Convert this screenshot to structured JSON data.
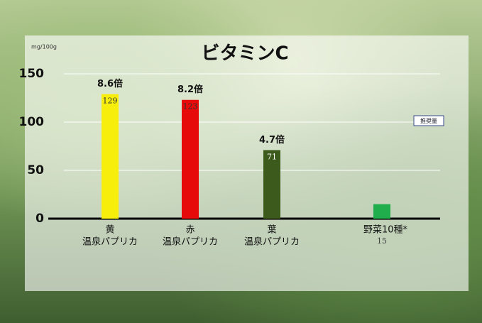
{
  "chart_data": {
    "type": "bar",
    "title": "ビタミンC",
    "y_label": "mg/100g",
    "categories": [
      [
        "黄",
        "温泉パプリカ"
      ],
      [
        "赤",
        "温泉パプリカ"
      ],
      [
        "葉",
        "温泉パプリカ"
      ],
      [
        "野菜10種*"
      ]
    ],
    "values": [
      129,
      123,
      71,
      15
    ],
    "colors": [
      "#f7ee0c",
      "#e60a0a",
      "#3b5a1c",
      "#1fae4b"
    ],
    "multipliers": [
      "8.6倍",
      "8.2倍",
      "4.7倍",
      null
    ],
    "annotation": "推奨量",
    "ylim": [
      0,
      150
    ],
    "yticks": [
      0,
      50,
      100,
      150
    ],
    "grid": true
  }
}
